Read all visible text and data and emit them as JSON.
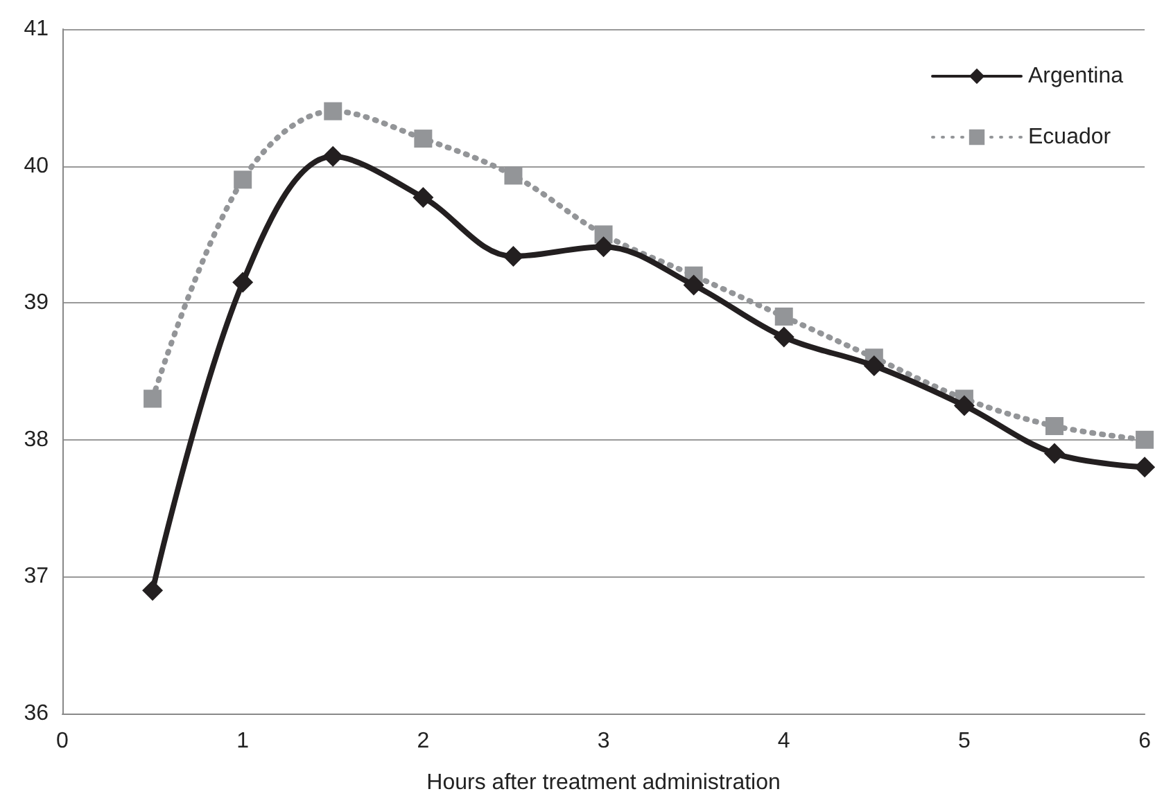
{
  "chart_data": {
    "type": "line",
    "xlabel": "Hours after treatment administration",
    "x": [
      0.5,
      1,
      1.5,
      2,
      2.5,
      3,
      3.5,
      4,
      4.5,
      5,
      5.5,
      6
    ],
    "series": [
      {
        "name": "Argentina",
        "color": "#231f20",
        "marker": "diamond",
        "line_style": "solid",
        "values": [
          36.9,
          39.15,
          40.07,
          39.77,
          39.34,
          39.41,
          39.13,
          38.75,
          38.54,
          38.25,
          37.9,
          37.8
        ]
      },
      {
        "name": "Ecuador",
        "color": "#939598",
        "marker": "square",
        "line_style": "dotted",
        "values": [
          38.3,
          39.9,
          40.4,
          40.2,
          39.93,
          39.5,
          39.2,
          38.9,
          38.6,
          38.3,
          38.1,
          38.0
        ]
      }
    ],
    "xlim": [
      0,
      6
    ],
    "xticks": [
      0,
      1,
      2,
      3,
      4,
      5,
      6
    ],
    "ylim": [
      36,
      41
    ],
    "yticks": [
      36,
      37,
      38,
      39,
      40,
      41
    ],
    "grid": "y",
    "legend": "top right"
  }
}
